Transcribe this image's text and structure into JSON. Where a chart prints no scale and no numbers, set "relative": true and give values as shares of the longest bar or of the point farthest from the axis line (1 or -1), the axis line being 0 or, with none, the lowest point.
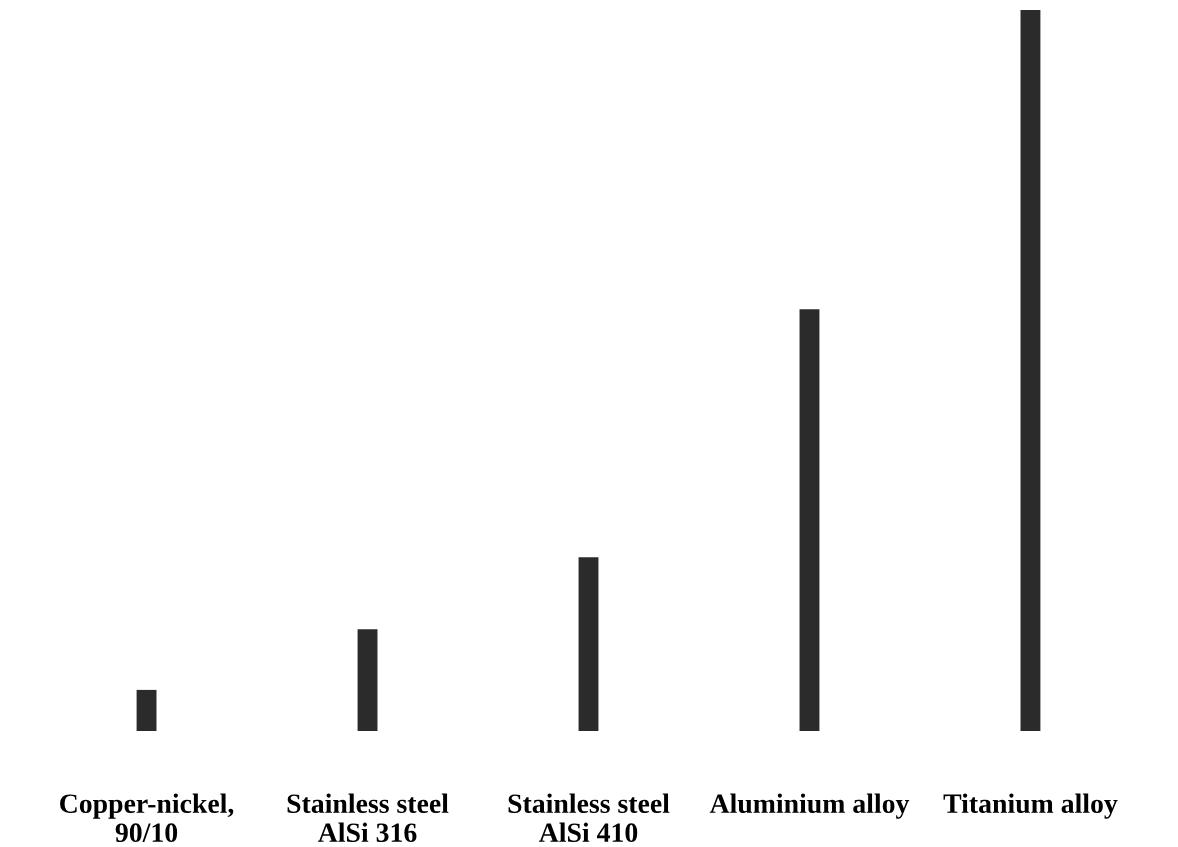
{
  "chart_data": {
    "type": "bar",
    "relative": true,
    "categories": [
      "Copper-nickel,\n90/10",
      "Stainless steel\nAlSi 316",
      "Stainless steel\nAlSi 410",
      "Aluminium alloy",
      "Titanium alloy"
    ],
    "values": [
      0.057,
      0.141,
      0.241,
      0.585,
      1
    ],
    "color": "#2b2b2b"
  }
}
